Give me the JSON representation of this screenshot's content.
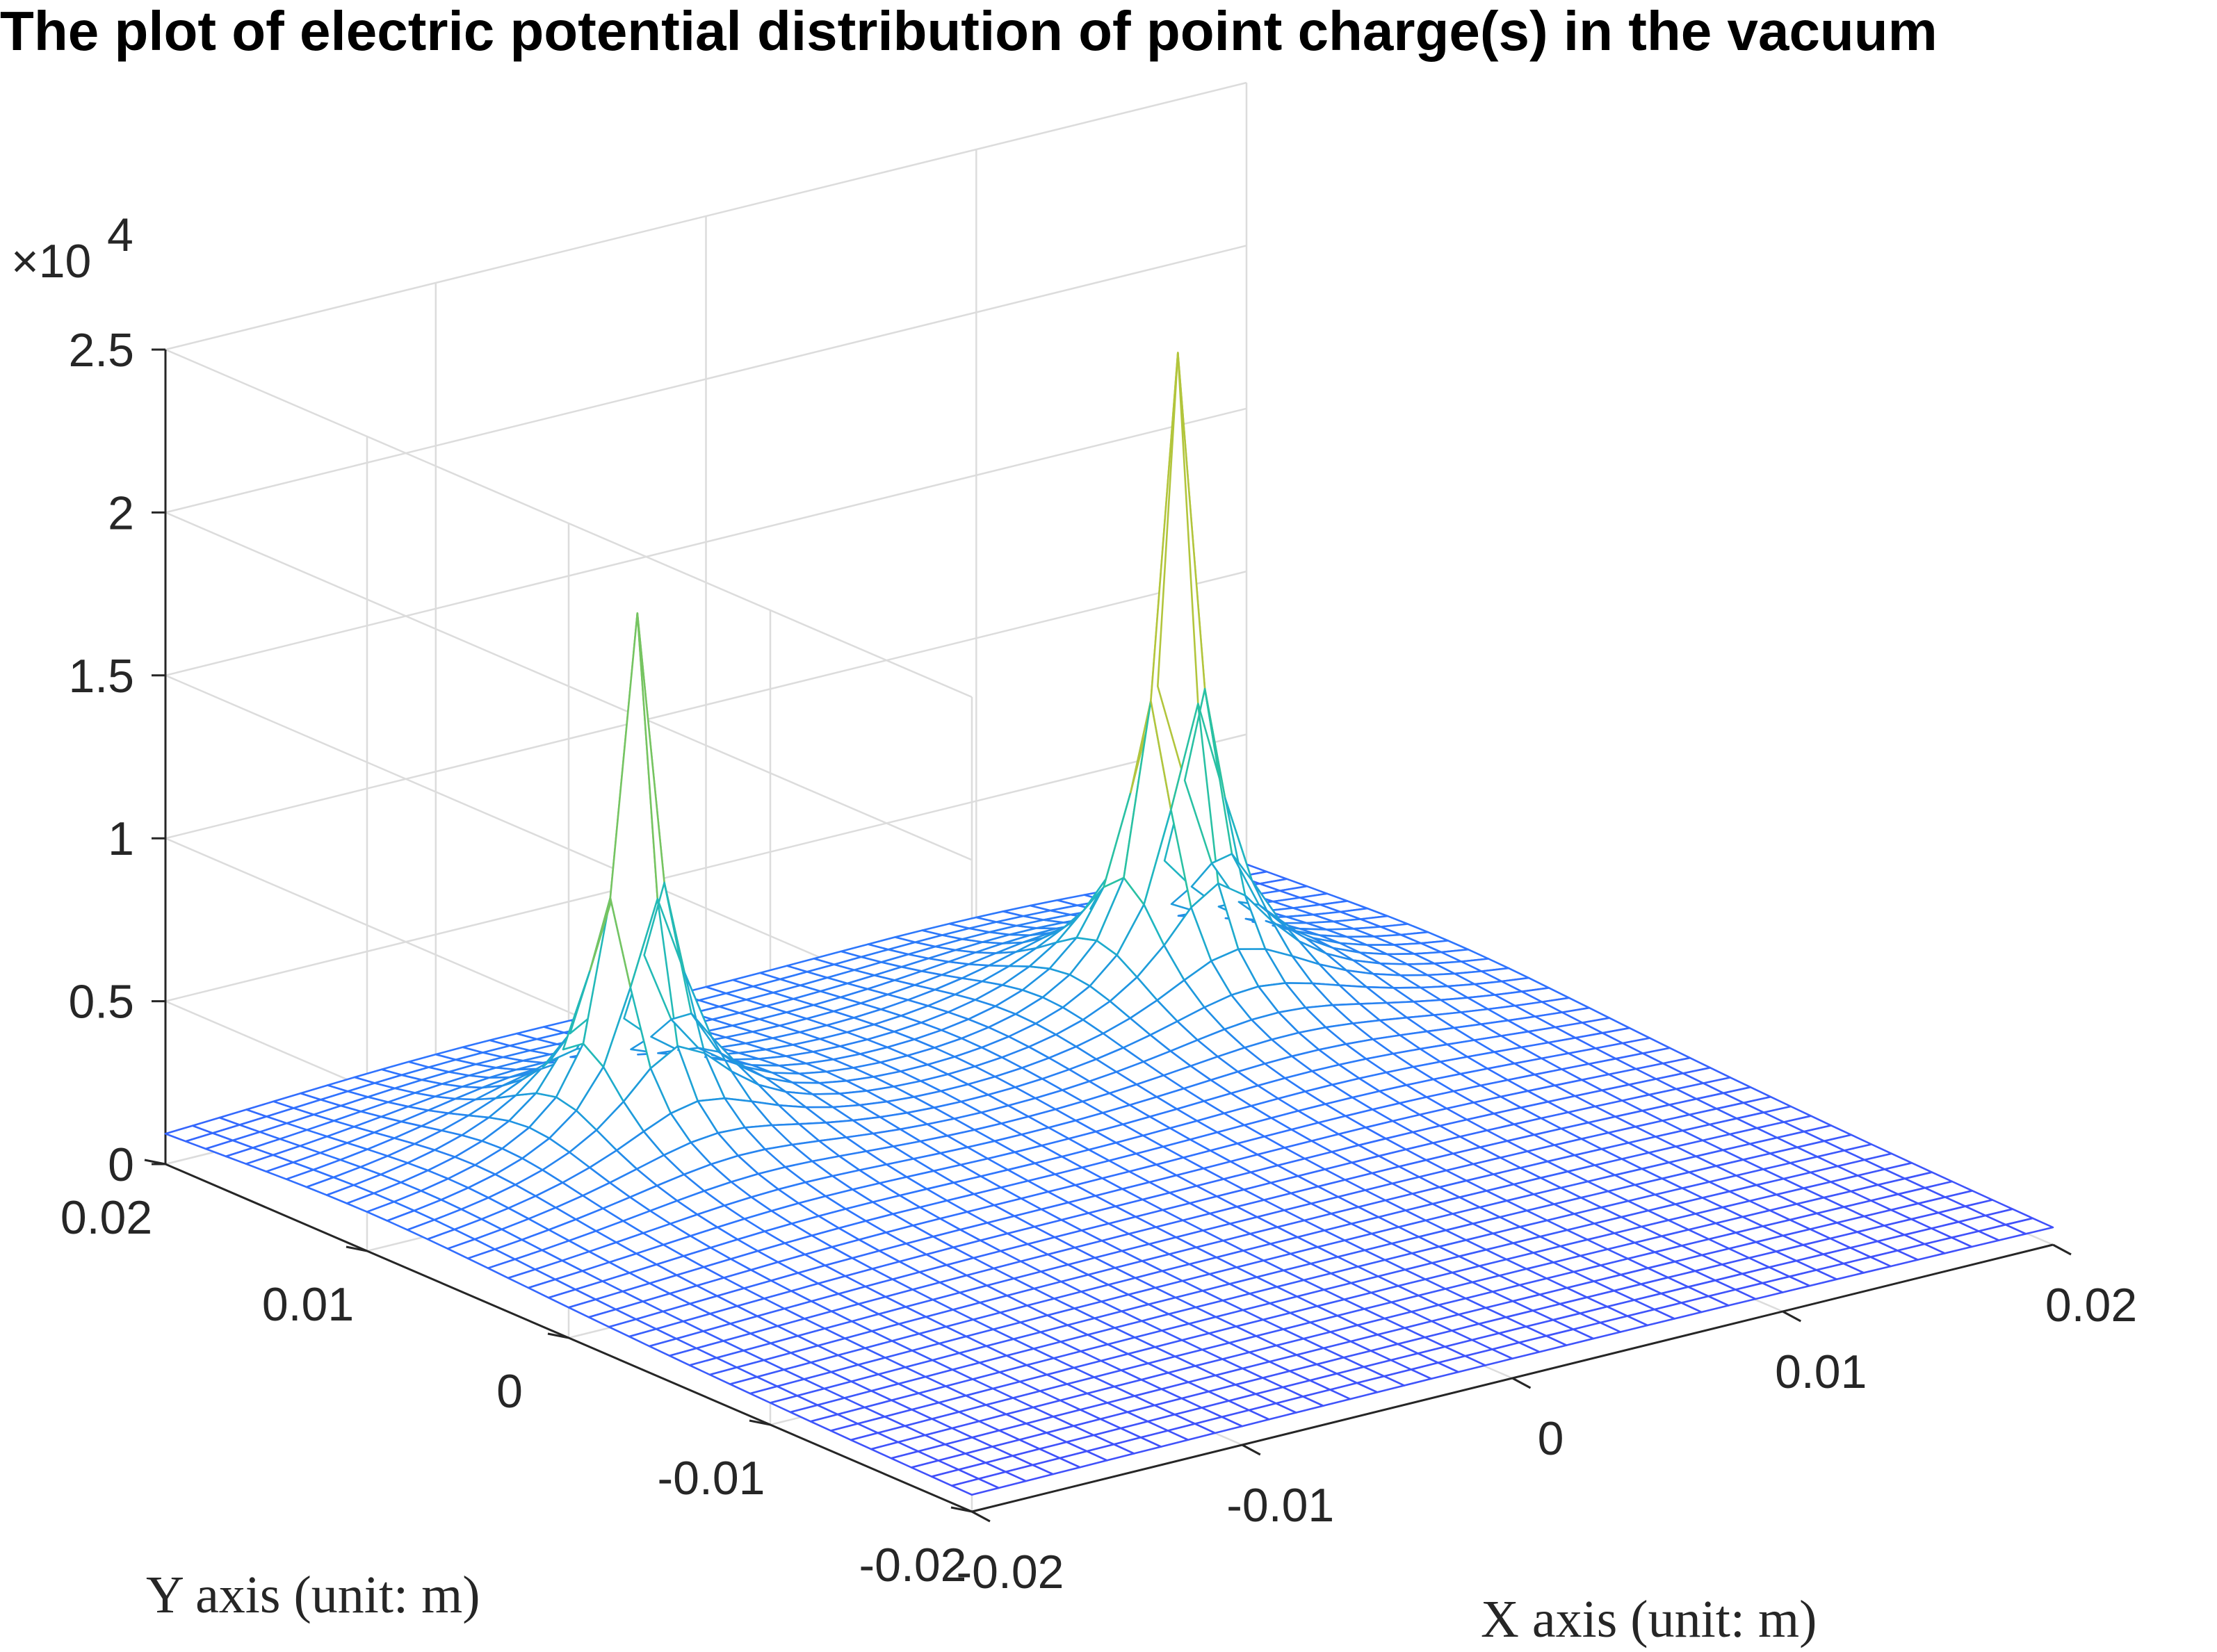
{
  "chart_data": {
    "type": "surface",
    "title": "The plot of electric potential distribution of point charge(s) in the vacuum",
    "xlabel": "X axis (unit: m)",
    "ylabel": "Y axis (unit: m)",
    "zlabel": "",
    "xlim": [
      -0.02,
      0.02
    ],
    "ylim": [
      -0.02,
      0.02
    ],
    "zlim": [
      0,
      25000
    ],
    "x_ticks": [
      "-0.02",
      "-0.01",
      "0",
      "0.01",
      "0.02"
    ],
    "y_ticks": [
      "-0.02",
      "-0.01",
      "0",
      "0.01",
      "0.02"
    ],
    "z_ticks": [
      "0",
      "0.5",
      "1",
      "1.5",
      "2",
      "2.5"
    ],
    "z_exponent_label": "×10",
    "z_exponent_power": "4",
    "grid": true,
    "colormap": "parula",
    "grid_points": 41,
    "charges": [
      {
        "x": -0.01,
        "y": 0.01,
        "peak_potential": 17000
      },
      {
        "x": 0.01,
        "y": 0.01,
        "peak_potential": 21000
      }
    ]
  }
}
